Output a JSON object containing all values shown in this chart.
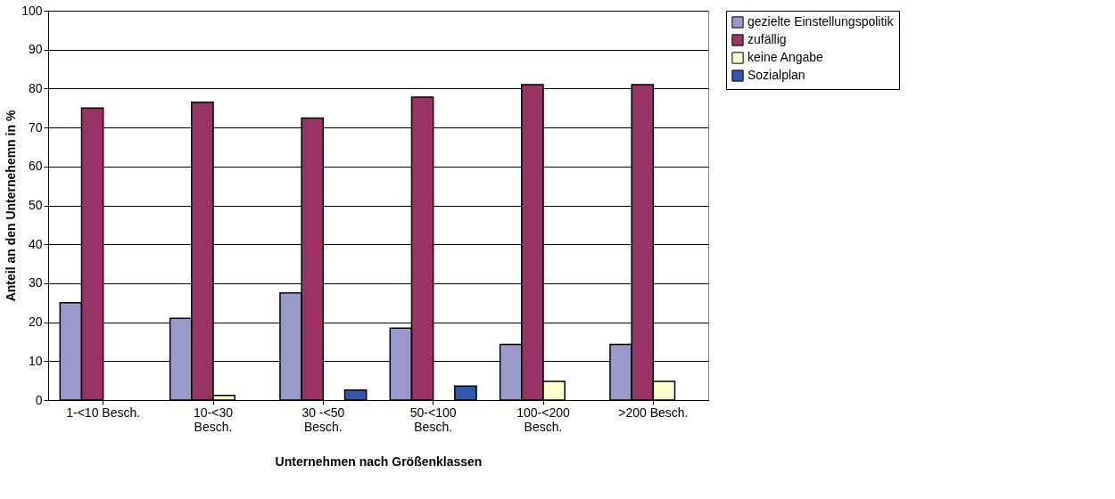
{
  "chart_data": {
    "type": "bar",
    "xlabel": "Unternehmen nach Größenklassen",
    "ylabel": "Anteil an den Unternehemn in %",
    "categories": [
      "1-<10 Besch.",
      "10-<30 Besch.",
      "30 -<50 Besch.",
      "50-<100 Besch.",
      "100-<200 Besch.",
      ">200 Besch."
    ],
    "series": [
      {
        "name": "gezielte Einstellungspolitik",
        "color": "#9999cc",
        "values": [
          25,
          21,
          27.5,
          18.5,
          14.3,
          14.3
        ]
      },
      {
        "name": "zufällig",
        "color": "#993366",
        "values": [
          75,
          76.5,
          72.4,
          77.8,
          81,
          81
        ]
      },
      {
        "name": "keine Angabe",
        "color": "#ffffcc",
        "values": [
          null,
          1.2,
          null,
          null,
          4.8,
          4.8
        ]
      },
      {
        "name": "Sozialplan",
        "color": "#3355aa",
        "values": [
          null,
          null,
          2.6,
          3.6,
          null,
          null
        ]
      }
    ],
    "ylim": [
      0,
      100
    ],
    "yticks": [
      0,
      10,
      20,
      30,
      40,
      50,
      60,
      70,
      80,
      90,
      100
    ],
    "grid": "y",
    "legend": "right"
  }
}
